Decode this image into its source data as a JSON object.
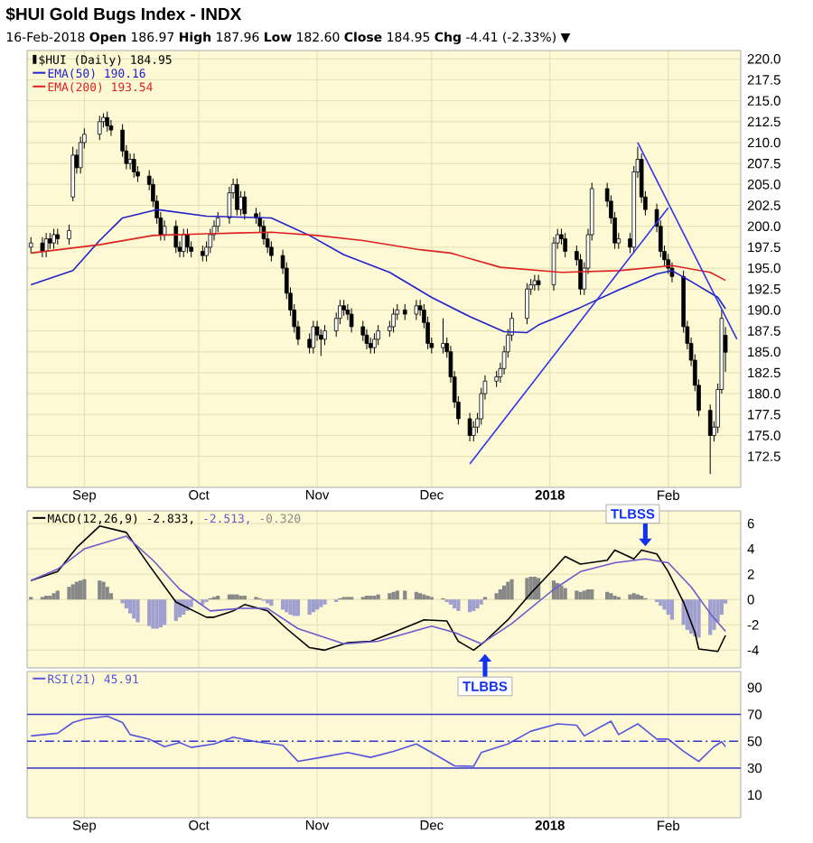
{
  "chart_data": [
    {
      "type": "candlestick",
      "title": "$HUI Gold Bugs Index - INDX",
      "subtitle": "16-Feb-2018  **Open** 186.97  **High** 187.96  **Low** 182.60  **Close** 184.95  **Chg** -4.41 (-2.33%) ▼",
      "xlim": [
        "2017-08-17",
        "2018-02-20"
      ],
      "ylim": [
        168.8,
        221
      ],
      "xticks": [
        {
          "value": "2017-09-01",
          "label": "Sep"
        },
        {
          "value": "2017-10-01",
          "label": "Oct"
        },
        {
          "value": "2017-11-01",
          "label": "Nov"
        },
        {
          "value": "2017-12-01",
          "label": "Dec"
        },
        {
          "value": "2018-01-01",
          "label": "**2018**"
        },
        {
          "value": "2018-02-01",
          "label": "Feb"
        }
      ],
      "yticks": [
        172.5,
        {
          "value": 175,
          "label": "175.0"
        },
        177.5,
        {
          "value": 180,
          "label": "180.0"
        },
        182.5,
        {
          "value": 185,
          "label": "185.0"
        },
        187.5,
        {
          "value": 190,
          "label": "190.0"
        },
        192.5,
        {
          "value": 195,
          "label": "195.0"
        },
        197.5,
        {
          "value": 200,
          "label": "200.0"
        },
        202.5,
        {
          "value": 205,
          "label": "205.0"
        },
        207.5,
        {
          "value": 210,
          "label": "210.0"
        },
        212.5,
        {
          "value": 215,
          "label": "215.0"
        },
        217.5,
        {
          "value": 220,
          "label": "220.0"
        }
      ],
      "grid": true,
      "legend": "top left",
      "x": [
        "2017-08-18",
        "2017-08-21",
        "2017-08-22",
        "2017-08-23",
        "2017-08-24",
        "2017-08-25",
        "2017-08-28",
        "2017-08-29",
        "2017-08-30",
        "2017-08-31",
        "2017-09-01",
        "2017-09-05",
        "2017-09-06",
        "2017-09-07",
        "2017-09-08",
        "2017-09-11",
        "2017-09-12",
        "2017-09-13",
        "2017-09-14",
        "2017-09-15",
        "2017-09-18",
        "2017-09-19",
        "2017-09-20",
        "2017-09-21",
        "2017-09-22",
        "2017-09-25",
        "2017-09-26",
        "2017-09-27",
        "2017-09-28",
        "2017-09-29",
        "2017-10-02",
        "2017-10-03",
        "2017-10-04",
        "2017-10-05",
        "2017-10-06",
        "2017-10-09",
        "2017-10-10",
        "2017-10-11",
        "2017-10-12",
        "2017-10-13",
        "2017-10-16",
        "2017-10-17",
        "2017-10-18",
        "2017-10-19",
        "2017-10-20",
        "2017-10-23",
        "2017-10-24",
        "2017-10-25",
        "2017-10-26",
        "2017-10-27",
        "2017-10-30",
        "2017-10-31",
        "2017-11-01",
        "2017-11-02",
        "2017-11-03",
        "2017-11-06",
        "2017-11-07",
        "2017-11-08",
        "2017-11-09",
        "2017-11-10",
        "2017-11-13",
        "2017-11-14",
        "2017-11-15",
        "2017-11-16",
        "2017-11-17",
        "2017-11-20",
        "2017-11-21",
        "2017-11-22",
        "2017-11-24",
        "2017-11-27",
        "2017-11-28",
        "2017-11-29",
        "2017-11-30",
        "2017-12-01",
        "2017-12-04",
        "2017-12-05",
        "2017-12-06",
        "2017-12-07",
        "2017-12-08",
        "2017-12-11",
        "2017-12-12",
        "2017-12-13",
        "2017-12-14",
        "2017-12-15",
        "2017-12-18",
        "2017-12-19",
        "2017-12-20",
        "2017-12-21",
        "2017-12-22",
        "2017-12-26",
        "2017-12-27",
        "2017-12-28",
        "2017-12-29",
        "2018-01-02",
        "2018-01-03",
        "2018-01-04",
        "2018-01-05",
        "2018-01-08",
        "2018-01-09",
        "2018-01-10",
        "2018-01-11",
        "2018-01-12",
        "2018-01-16",
        "2018-01-17",
        "2018-01-18",
        "2018-01-19",
        "2018-01-22",
        "2018-01-23",
        "2018-01-24",
        "2018-01-25",
        "2018-01-26",
        "2018-01-29",
        "2018-01-30",
        "2018-01-31",
        "2018-02-01",
        "2018-02-02",
        "2018-02-05",
        "2018-02-06",
        "2018-02-07",
        "2018-02-08",
        "2018-02-09",
        "2018-02-12",
        "2018-02-13",
        "2018-02-14",
        "2018-02-15",
        "2018-02-16"
      ],
      "series": [
        {
          "type": "candlestick",
          "name": "$HUI (Daily) 184.95",
          "color": "#000000",
          "ohlc": [
            [
              197.5,
              198.7,
              196.8,
              198
            ],
            [
              198,
              198.7,
              196.3,
              197
            ],
            [
              197,
              199.2,
              196.3,
              198.5
            ],
            [
              198.5,
              199.2,
              197.3,
              198
            ],
            [
              198,
              199.7,
              197.3,
              199
            ],
            [
              199,
              199.7,
              197.8,
              198.5
            ],
            [
              198.5,
              200.2,
              197.8,
              199.5
            ],
            [
              203.5,
              209.5,
              203,
              208.5
            ],
            [
              208.5,
              209.2,
              206.3,
              207
            ],
            [
              207,
              210.7,
              206.3,
              210
            ],
            [
              210,
              211.7,
              209.3,
              211
            ],
            [
              211,
              213.2,
              210.3,
              212.5
            ],
            [
              212.5,
              213.5,
              211.8,
              213
            ],
            [
              213,
              213.7,
              211.3,
              212
            ],
            [
              212,
              212.7,
              210.8,
              211.5
            ],
            [
              211.5,
              212.2,
              208.3,
              209
            ],
            [
              209,
              209.7,
              206.8,
              207.5
            ],
            [
              207.5,
              208.7,
              206.8,
              208
            ],
            [
              208,
              208.7,
              205.8,
              206.5
            ],
            [
              206.5,
              207.2,
              205.3,
              206
            ],
            [
              206,
              206.7,
              204.3,
              205
            ],
            [
              205,
              205.7,
              202.3,
              203
            ],
            [
              203,
              203.7,
              200.3,
              201
            ],
            [
              201,
              201.7,
              198.3,
              199
            ],
            [
              199,
              200.7,
              198.3,
              200
            ],
            [
              200,
              200.7,
              196.8,
              197.5
            ],
            [
              197.5,
              198.2,
              196.3,
              197
            ],
            [
              197,
              199.7,
              196.3,
              199
            ],
            [
              199,
              199.7,
              196.8,
              197.5
            ],
            [
              197.5,
              198.2,
              196.3,
              197
            ],
            [
              197,
              197.7,
              195.8,
              196.5
            ],
            [
              196.5,
              198.2,
              195.8,
              197.5
            ],
            [
              197.5,
              199.7,
              196.8,
              199
            ],
            [
              199,
              200.7,
              198.3,
              200
            ],
            [
              200,
              201.7,
              199.3,
              201
            ],
            [
              201,
              204.7,
              200.3,
              204
            ],
            [
              204,
              205.7,
              203.3,
              205
            ],
            [
              205,
              205.7,
              201.3,
              202
            ],
            [
              202,
              204.2,
              201.3,
              203.5
            ],
            [
              203.5,
              204.2,
              200.8,
              201.5
            ],
            [
              201.5,
              202.2,
              200.3,
              201
            ],
            [
              201,
              201.7,
              199.3,
              200
            ],
            [
              200,
              200.7,
              197.8,
              198.5
            ],
            [
              198.5,
              199.2,
              196.8,
              197.5
            ],
            [
              197.5,
              198.2,
              195.8,
              196.5
            ],
            [
              196.5,
              197.2,
              194.3,
              195
            ],
            [
              195,
              195.7,
              191.3,
              192
            ],
            [
              192,
              192.7,
              189.3,
              190
            ],
            [
              190,
              190.7,
              187.3,
              188
            ],
            [
              188,
              188.7,
              185.8,
              186.5
            ],
            [
              186.5,
              187.2,
              184.8,
              185.5
            ],
            [
              185.5,
              188.7,
              184.8,
              188
            ],
            [
              188,
              188.7,
              186.3,
              187
            ],
            [
              187,
              187.7,
              184.5,
              186.5
            ],
            [
              186.5,
              188.2,
              185.8,
              187.5
            ],
            [
              187.5,
              189.7,
              186.8,
              189
            ],
            [
              189,
              191.2,
              188.3,
              190.5
            ],
            [
              190.5,
              191.2,
              189.3,
              190
            ],
            [
              190,
              190.7,
              188.8,
              189.5
            ],
            [
              189.5,
              190.2,
              187.3,
              188
            ],
            [
              188,
              188.7,
              186.3,
              187
            ],
            [
              187,
              187.7,
              185.3,
              186
            ],
            [
              186,
              186.7,
              184.8,
              185.5
            ],
            [
              185.5,
              187.2,
              184.8,
              186.5
            ],
            [
              186.5,
              188.2,
              185.8,
              187.5
            ],
            [
              187.5,
              188.7,
              186.8,
              188
            ],
            [
              188,
              190.2,
              187.3,
              189.5
            ],
            [
              189.5,
              190.7,
              188.8,
              190
            ],
            [
              190,
              190.7,
              188.8,
              189.5
            ],
            [
              189.5,
              191.2,
              188.8,
              190.5
            ],
            [
              190.5,
              191.2,
              189.3,
              190
            ],
            [
              190,
              190.7,
              187.8,
              188.5
            ],
            [
              188.5,
              189.2,
              185.3,
              186
            ],
            [
              186,
              186.7,
              184.8,
              185.5
            ],
            [
              185.5,
              189,
              184.8,
              186
            ],
            [
              186,
              186.7,
              184.3,
              185
            ],
            [
              185,
              185.7,
              181.3,
              182
            ],
            [
              182,
              182.7,
              178.3,
              179
            ],
            [
              179,
              179.7,
              176.3,
              177
            ],
            [
              177,
              177.7,
              174.3,
              175
            ],
            [
              175,
              176.7,
              174.3,
              176
            ],
            [
              176,
              177.7,
              175.3,
              177
            ],
            [
              177,
              180.7,
              176.3,
              180
            ],
            [
              180,
              182.2,
              179.3,
              181.5
            ],
            [
              181.5,
              182.7,
              180.8,
              182
            ],
            [
              182,
              183.7,
              181.3,
              183
            ],
            [
              183,
              185.7,
              182.3,
              185
            ],
            [
              185,
              187.7,
              184.3,
              187
            ],
            [
              187,
              189.7,
              186.3,
              189
            ],
            [
              189,
              193.2,
              188.3,
              192.5
            ],
            [
              192.5,
              193.7,
              191.8,
              193
            ],
            [
              193,
              194.2,
              192.3,
              193.5
            ],
            [
              193.5,
              194.2,
              192.3,
              193
            ],
            [
              193,
              198.7,
              192.3,
              198
            ],
            [
              198,
              199.7,
              197.3,
              199
            ],
            [
              199,
              199.7,
              197.8,
              198.5
            ],
            [
              198.5,
              199.2,
              196.3,
              197
            ],
            [
              197,
              197.7,
              195.3,
              196
            ],
            [
              196,
              196.7,
              191.8,
              192.5
            ],
            [
              192.5,
              195.7,
              191.8,
              195
            ],
            [
              195,
              199.7,
              194.3,
              199
            ],
            [
              199,
              205.2,
              198.3,
              204.5
            ],
            [
              204.5,
              205.2,
              202.3,
              203
            ],
            [
              203,
              203.7,
              200.3,
              201
            ],
            [
              201,
              201.7,
              197.3,
              198
            ],
            [
              198,
              199.2,
              197.3,
              198.5
            ],
            [
              198.5,
              199.2,
              196.8,
              197.5
            ],
            [
              197.5,
              207.2,
              196.8,
              206.5
            ],
            [
              206.5,
              209.5,
              205.8,
              208
            ],
            [
              208,
              208.7,
              202.8,
              203.5
            ],
            [
              203.5,
              204.2,
              201.3,
              202
            ],
            [
              202,
              202.7,
              199.3,
              200
            ],
            [
              200,
              200.7,
              196.3,
              197
            ],
            [
              197,
              197.7,
              195.3,
              196
            ],
            [
              196,
              196.7,
              194.3,
              195
            ],
            [
              195,
              195.7,
              193.3,
              194
            ],
            [
              194,
              194.7,
              187.3,
              188
            ],
            [
              188,
              188.7,
              185.3,
              186
            ],
            [
              186,
              186.7,
              183.3,
              184
            ],
            [
              184,
              184.7,
              180.3,
              181
            ],
            [
              181,
              181.7,
              177.3,
              178
            ],
            [
              178,
              178.7,
              170.4,
              175
            ],
            [
              175,
              176.7,
              174.3,
              176
            ],
            [
              176,
              181.2,
              175.3,
              180.5
            ],
            [
              180.5,
              190,
              180,
              189
            ],
            [
              186.97,
              187.96,
              182.6,
              184.95
            ]
          ]
        },
        {
          "type": "line",
          "name": "EMA(50) 190.16",
          "color": "#2222cc",
          "x": [
            "2017-08-18",
            "2017-08-29",
            "2017-09-05",
            "2017-09-11",
            "2017-09-20",
            "2017-10-03",
            "2017-10-20",
            "2017-10-30",
            "2017-11-08",
            "2017-11-20",
            "2017-12-01",
            "2017-12-11",
            "2017-12-20",
            "2017-12-26",
            "2017-12-29",
            "2018-01-09",
            "2018-01-19",
            "2018-01-29",
            "2018-02-02",
            "2018-02-07",
            "2018-02-14",
            "2018-02-16"
          ],
          "values": [
            193,
            194.7,
            198.3,
            201,
            202,
            201.2,
            201,
            198.9,
            196.6,
            194.5,
            191.5,
            189.2,
            187.4,
            187.3,
            188.2,
            190.3,
            192.4,
            194.3,
            194.7,
            193.4,
            191.5,
            190.16
          ]
        },
        {
          "type": "line",
          "name": "EMA(200) 193.54",
          "color": "#dd2222",
          "x": [
            "2017-08-18",
            "2017-09-05",
            "2017-09-19",
            "2017-10-03",
            "2017-10-20",
            "2017-11-01",
            "2017-11-13",
            "2017-11-28",
            "2017-12-06",
            "2017-12-19",
            "2018-01-04",
            "2018-01-19",
            "2018-02-02",
            "2018-02-12",
            "2018-02-16"
          ],
          "values": [
            196.8,
            197.8,
            198.9,
            199.1,
            199.3,
            198.9,
            198.3,
            197.2,
            196.8,
            195.1,
            194.5,
            194.7,
            195.3,
            194.5,
            193.54
          ]
        },
        {
          "type": "line",
          "color": "#3333ee",
          "x": [
            "2017-12-11",
            "2018-02-01"
          ],
          "values": [
            171.6,
            202.2
          ]
        },
        {
          "type": "line",
          "color": "#3333ee",
          "x": [
            "2018-01-24",
            "2018-02-19"
          ],
          "values": [
            210,
            186.5
          ]
        }
      ]
    },
    {
      "type": "line",
      "xlim": [
        "2017-08-17",
        "2018-02-20"
      ],
      "ylim": [
        -5.4,
        7
      ],
      "xticks": [
        {
          "value": "2017-09-01",
          "label": null
        },
        {
          "value": "2017-10-01",
          "label": null
        },
        {
          "value": "2017-11-01",
          "label": null
        },
        {
          "value": "2017-12-01",
          "label": null
        },
        {
          "value": "2018-01-01",
          "label": null
        },
        {
          "value": "2018-02-01",
          "label": null
        }
      ],
      "yticks": [
        -4,
        -2,
        0,
        2,
        4,
        6
      ],
      "tick_labels": "y",
      "grid": true,
      "legend": "top left",
      "x": [
        "2017-08-18",
        "2017-08-21",
        "2017-08-22",
        "2017-08-23",
        "2017-08-24",
        "2017-08-25",
        "2017-08-28",
        "2017-08-29",
        "2017-08-30",
        "2017-08-31",
        "2017-09-01",
        "2017-09-05",
        "2017-09-06",
        "2017-09-07",
        "2017-09-08",
        "2017-09-11",
        "2017-09-12",
        "2017-09-13",
        "2017-09-14",
        "2017-09-15",
        "2017-09-18",
        "2017-09-19",
        "2017-09-20",
        "2017-09-21",
        "2017-09-22",
        "2017-09-25",
        "2017-09-26",
        "2017-09-27",
        "2017-09-28",
        "2017-09-29",
        "2017-10-02",
        "2017-10-03",
        "2017-10-04",
        "2017-10-05",
        "2017-10-06",
        "2017-10-09",
        "2017-10-10",
        "2017-10-11",
        "2017-10-12",
        "2017-10-13",
        "2017-10-16",
        "2017-10-17",
        "2017-10-18",
        "2017-10-19",
        "2017-10-20",
        "2017-10-23",
        "2017-10-24",
        "2017-10-25",
        "2017-10-26",
        "2017-10-27",
        "2017-10-30",
        "2017-10-31",
        "2017-11-01",
        "2017-11-02",
        "2017-11-03",
        "2017-11-06",
        "2017-11-07",
        "2017-11-08",
        "2017-11-09",
        "2017-11-10",
        "2017-11-13",
        "2017-11-14",
        "2017-11-15",
        "2017-11-16",
        "2017-11-17",
        "2017-11-20",
        "2017-11-21",
        "2017-11-22",
        "2017-11-24",
        "2017-11-27",
        "2017-11-28",
        "2017-11-29",
        "2017-11-30",
        "2017-12-01",
        "2017-12-04",
        "2017-12-05",
        "2017-12-06",
        "2017-12-07",
        "2017-12-08",
        "2017-12-11",
        "2017-12-12",
        "2017-12-13",
        "2017-12-14",
        "2017-12-15",
        "2017-12-18",
        "2017-12-19",
        "2017-12-20",
        "2017-12-21",
        "2017-12-22",
        "2017-12-26",
        "2017-12-27",
        "2017-12-28",
        "2017-12-29",
        "2018-01-02",
        "2018-01-03",
        "2018-01-04",
        "2018-01-05",
        "2018-01-08",
        "2018-01-09",
        "2018-01-10",
        "2018-01-11",
        "2018-01-12",
        "2018-01-16",
        "2018-01-17",
        "2018-01-18",
        "2018-01-19",
        "2018-01-22",
        "2018-01-23",
        "2018-01-24",
        "2018-01-25",
        "2018-01-26",
        "2018-01-29",
        "2018-01-30",
        "2018-01-31",
        "2018-02-01",
        "2018-02-02",
        "2018-02-05",
        "2018-02-06",
        "2018-02-07",
        "2018-02-08",
        "2018-02-09",
        "2018-02-12",
        "2018-02-13",
        "2018-02-14",
        "2018-02-15",
        "2018-02-16"
      ],
      "series": [
        {
          "type": "line",
          "name": "MACD(12,26,9) -2.833,",
          "color": "#000000",
          "x": [
            "2017-08-18",
            "2017-08-25",
            "2017-08-30",
            "2017-09-05",
            "2017-09-12",
            "2017-09-18",
            "2017-09-25",
            "2017-10-03",
            "2017-10-05",
            "2017-10-10",
            "2017-10-13",
            "2017-10-19",
            "2017-10-24",
            "2017-10-30",
            "2017-11-03",
            "2017-11-09",
            "2017-11-15",
            "2017-11-21",
            "2017-11-29",
            "2017-12-05",
            "2017-12-08",
            "2017-12-12",
            "2017-12-15",
            "2017-12-21",
            "2017-12-27",
            "2018-01-02",
            "2018-01-05",
            "2018-01-09",
            "2018-01-16",
            "2018-01-18",
            "2018-01-23",
            "2018-01-25",
            "2018-01-29",
            "2018-02-01",
            "2018-02-05",
            "2018-02-08",
            "2018-02-09",
            "2018-02-14",
            "2018-02-16"
          ],
          "values": [
            1.5,
            2.2,
            4.1,
            5.8,
            5.3,
            2.7,
            -0.2,
            -1.4,
            -1.4,
            -0.9,
            -0.4,
            -0.9,
            -2.3,
            -3.8,
            -4.0,
            -3.4,
            -3.3,
            -2.6,
            -1.6,
            -1.7,
            -3.3,
            -4.0,
            -3.3,
            -1.6,
            0.5,
            2.4,
            3.4,
            2.8,
            3.1,
            3.9,
            3.2,
            3.9,
            3.6,
            2.2,
            -0.2,
            -2.6,
            -3.9,
            -4.1,
            -2.833
          ]
        },
        {
          "type": "line",
          "name": "-2.513,",
          "color": "#6a5acd",
          "x": [
            "2017-08-18",
            "2017-08-25",
            "2017-09-01",
            "2017-09-12",
            "2017-09-19",
            "2017-09-26",
            "2017-10-04",
            "2017-10-12",
            "2017-10-19",
            "2017-10-27",
            "2017-11-08",
            "2017-11-17",
            "2017-12-01",
            "2017-12-07",
            "2017-12-14",
            "2017-12-22",
            "2018-01-02",
            "2018-01-09",
            "2018-01-18",
            "2018-01-26",
            "2018-02-01",
            "2018-02-07",
            "2018-02-12",
            "2018-02-16"
          ],
          "values": [
            1.5,
            2.4,
            4.0,
            5.0,
            3.1,
            0.8,
            -0.9,
            -0.7,
            -0.7,
            -2.3,
            -3.5,
            -3.3,
            -2.1,
            -2.6,
            -3.5,
            -1.9,
            0.8,
            2.2,
            2.9,
            3.2,
            2.9,
            1.0,
            -1.1,
            -2.513
          ]
        },
        {
          "type": "bar",
          "name": "-0.320",
          "color": "#888888",
          "values": [
            0.2,
            0.2,
            0.3,
            0.3,
            0.5,
            0.7,
            1.0,
            1.2,
            1.4,
            1.5,
            1.6,
            1.5,
            1.4,
            1.0,
            0.5,
            null,
            null,
            null,
            null,
            null,
            null,
            null,
            null,
            null,
            null,
            null,
            null,
            null,
            null,
            null,
            null,
            null,
            0.1,
            0.2,
            0.3,
            0.4,
            0.4,
            0.4,
            0.3,
            0.3,
            0.2,
            0.1,
            null,
            null,
            null,
            null,
            null,
            null,
            null,
            null,
            null,
            null,
            null,
            null,
            null,
            null,
            0.1,
            0.2,
            0.2,
            0.2,
            0.2,
            0.3,
            0.3,
            0.3,
            0.4,
            0.5,
            0.6,
            0.7,
            0.7,
            0.6,
            0.5,
            0.4,
            0.3,
            0.2,
            0.1,
            null,
            null,
            null,
            null,
            null,
            null,
            null,
            null,
            0.2,
            0.5,
            0.8,
            1.1,
            1.4,
            1.6,
            1.7,
            1.8,
            1.8,
            1.7,
            1.5,
            1.3,
            1.1,
            0.9,
            0.7,
            0.6,
            0.7,
            0.8,
            0.8,
            0.6,
            0.5,
            0.3,
            0.2,
            0.4,
            0.5,
            0.4,
            0.3,
            0.1,
            null,
            null,
            null,
            null,
            null,
            null,
            null,
            null,
            null,
            null,
            null,
            null,
            null,
            null,
            null
          ]
        },
        {
          "type": "bar",
          "color": "#a0a0d0",
          "values": [
            null,
            null,
            null,
            null,
            null,
            null,
            null,
            null,
            null,
            null,
            null,
            null,
            null,
            null,
            null,
            -0.3,
            -0.7,
            -1.1,
            -1.5,
            -1.8,
            -2.1,
            -2.3,
            -2.3,
            -2.2,
            -2.0,
            -1.7,
            -1.4,
            -1.2,
            -0.9,
            -0.6,
            -0.4,
            -0.2,
            null,
            null,
            null,
            null,
            null,
            null,
            null,
            null,
            null,
            null,
            -0.1,
            -0.3,
            -0.5,
            -0.8,
            -1.0,
            -1.2,
            -1.3,
            -1.3,
            -1.2,
            -1.0,
            -0.8,
            -0.6,
            -0.4,
            -0.2,
            null,
            null,
            null,
            null,
            null,
            null,
            null,
            null,
            null,
            null,
            null,
            null,
            null,
            null,
            null,
            null,
            null,
            null,
            null,
            -0.2,
            -0.4,
            -0.7,
            -0.9,
            -1.0,
            -0.9,
            -0.7,
            -0.4,
            null,
            null,
            null,
            null,
            null,
            null,
            null,
            null,
            null,
            null,
            null,
            null,
            null,
            null,
            null,
            null,
            null,
            null,
            null,
            null,
            null,
            null,
            null,
            null,
            null,
            null,
            null,
            null,
            -0.2,
            -0.5,
            -0.8,
            -1.2,
            -1.6,
            -2.0,
            -2.4,
            -2.7,
            -2.9,
            -3.0,
            -2.8,
            -2.4,
            -1.8,
            -1.2,
            -0.32
          ]
        }
      ],
      "annotations": [
        {
          "text": "TLBSS",
          "x": "2018-01-26",
          "y": 3.9
        },
        {
          "text": "TLBBS",
          "x": "2017-12-15",
          "y": -4.0
        }
      ]
    },
    {
      "type": "line",
      "xlim": [
        "2017-08-17",
        "2018-02-20"
      ],
      "ylim": [
        -7,
        102
      ],
      "xticks": [
        {
          "value": "2017-09-01",
          "label": "Sep"
        },
        {
          "value": "2017-10-01",
          "label": "Oct"
        },
        {
          "value": "2017-11-01",
          "label": "Nov"
        },
        {
          "value": "2017-12-01",
          "label": "Dec"
        },
        {
          "value": "2018-01-01",
          "label": "**2018**"
        },
        {
          "value": "2018-02-01",
          "label": "Feb"
        }
      ],
      "yticks": [
        10,
        30,
        50,
        70,
        90
      ],
      "grid": "x",
      "legend": "top left",
      "series": [
        {
          "type": "line",
          "name": "RSI(21) 45.91",
          "color": "#5555dd",
          "x": [
            "2017-08-18",
            "2017-08-25",
            "2017-08-29",
            "2017-09-01",
            "2017-09-07",
            "2017-09-11",
            "2017-09-13",
            "2017-09-18",
            "2017-09-22",
            "2017-09-26",
            "2017-09-29",
            "2017-10-05",
            "2017-10-10",
            "2017-10-16",
            "2017-10-23",
            "2017-10-27",
            "2017-11-02",
            "2017-11-09",
            "2017-11-15",
            "2017-11-21",
            "2017-11-27",
            "2017-12-01",
            "2017-12-07",
            "2017-12-12",
            "2017-12-14",
            "2017-12-21",
            "2017-12-27",
            "2018-01-03",
            "2018-01-08",
            "2018-01-10",
            "2018-01-17",
            "2018-01-19",
            "2018-01-24",
            "2018-01-29",
            "2018-02-01",
            "2018-02-05",
            "2018-02-09",
            "2018-02-13",
            "2018-02-15",
            "2018-02-16"
          ],
          "values": [
            54,
            56,
            64,
            66.5,
            68.7,
            64,
            55,
            51.6,
            46,
            49,
            45.4,
            48,
            53,
            49.7,
            47,
            35,
            38,
            41.6,
            38,
            42.5,
            48,
            41.6,
            31.7,
            31.3,
            41.6,
            48,
            57.5,
            63,
            62,
            54,
            65,
            55,
            63,
            51.6,
            51.6,
            42.5,
            35,
            46,
            49.7,
            45.91
          ]
        }
      ],
      "ref_lines": [
        {
          "axis": "y",
          "value": 70,
          "color": "#3333cc",
          "line_style": "solid"
        },
        {
          "axis": "y",
          "value": 50,
          "color": "#3333cc",
          "line_style": "dashed"
        },
        {
          "axis": "y",
          "value": 30,
          "color": "#3333cc",
          "line_style": "solid"
        }
      ]
    }
  ]
}
